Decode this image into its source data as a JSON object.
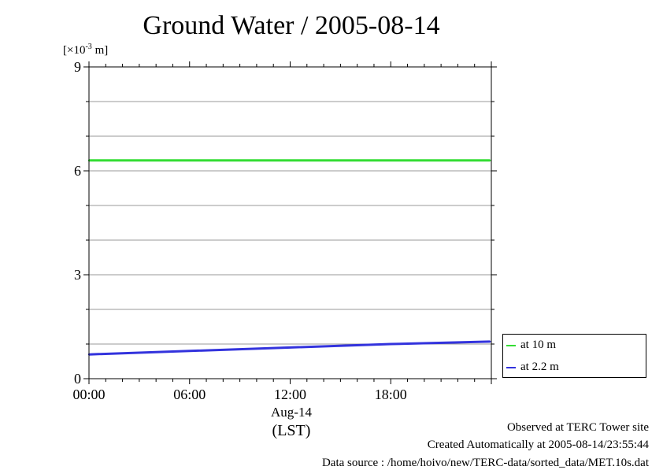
{
  "chart_data": {
    "type": "line",
    "title": "Ground Water / 2005-08-14",
    "ylabel": "[×10-3 m]",
    "ylabel_prefix": "[×10",
    "ylabel_exp": "-3",
    "ylabel_suffix": " m]",
    "xlabel": "(LST)",
    "x_date_label": "Aug-14",
    "ylim": [
      0,
      9
    ],
    "xlim": [
      "00:00",
      "24:00"
    ],
    "yticks": [
      "0",
      "3",
      "6",
      "9"
    ],
    "xticks": [
      "00:00",
      "06:00",
      "12:00",
      "18:00"
    ],
    "grid": true,
    "legend_position": "bottom-right outside",
    "series": [
      {
        "name": "at 10 m",
        "color": "#33dd33",
        "x": [
          "00:00",
          "06:00",
          "12:00",
          "18:00",
          "23:55"
        ],
        "values": [
          6.3,
          6.3,
          6.3,
          6.3,
          6.3
        ]
      },
      {
        "name": "at 2.2 m",
        "color": "#3333dd",
        "x": [
          "00:00",
          "06:00",
          "12:00",
          "18:00",
          "23:55"
        ],
        "values": [
          0.7,
          0.8,
          0.9,
          1.0,
          1.07
        ]
      }
    ]
  },
  "footer": {
    "line1": "Observed at TERC Tower site",
    "line2": "Created Automatically at 2005-08-14/23:55:44",
    "line3": "Data source : /home/hoivo/new/TERC-data/sorted_data/MET.10s.dat"
  }
}
